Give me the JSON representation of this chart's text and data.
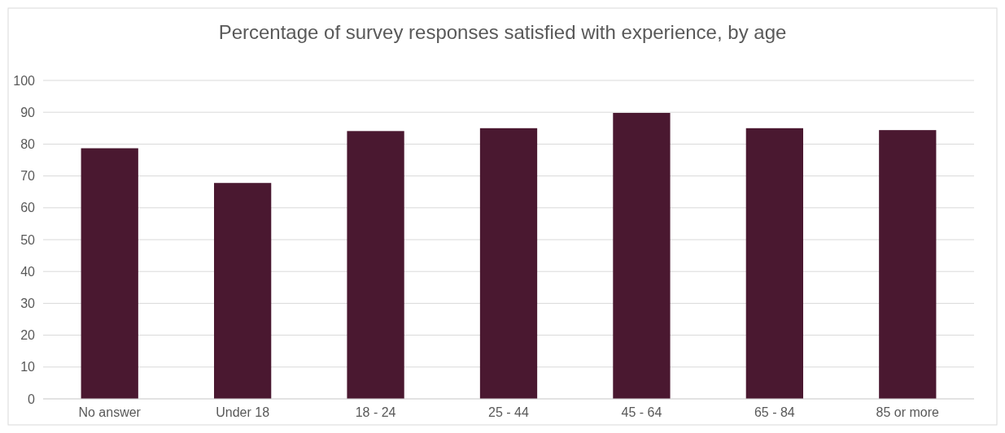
{
  "chart_data": {
    "type": "bar",
    "title": "Percentage of survey responses satisfied with experience, by age",
    "categories": [
      "No answer",
      "Under 18",
      "18 - 24",
      "25 - 44",
      "45 - 64",
      "65 - 84",
      "85 or more"
    ],
    "values": [
      78.7,
      67.8,
      84.1,
      85,
      89.8,
      85,
      84.4
    ],
    "color": "#4a1830",
    "ylim": [
      0,
      100
    ],
    "yticks": [
      0,
      10,
      20,
      30,
      40,
      50,
      60,
      70,
      80,
      90,
      100
    ],
    "grid": "y"
  }
}
